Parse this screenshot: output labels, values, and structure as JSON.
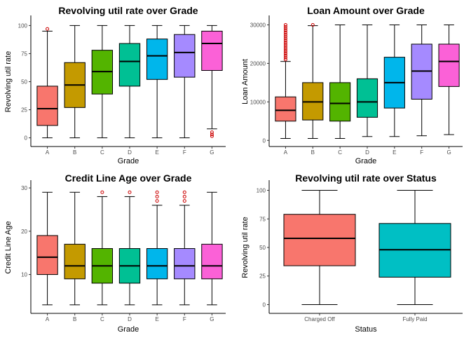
{
  "chart_data": [
    {
      "type": "boxplot",
      "title": "Revolving util rate over Grade",
      "xlabel": "Grade",
      "ylabel": "Revolving util rate",
      "ylim": [
        -4,
        104
      ],
      "yticks": [
        0,
        25,
        50,
        75,
        100
      ],
      "categories": [
        "A",
        "B",
        "C",
        "D",
        "E",
        "F",
        "G"
      ],
      "boxes": [
        {
          "min": 0,
          "q1": 11,
          "median": 26,
          "q3": 46,
          "max": 95,
          "outliers": [
            97
          ]
        },
        {
          "min": 0,
          "q1": 27,
          "median": 47,
          "q3": 67,
          "max": 100,
          "outliers": []
        },
        {
          "min": 0,
          "q1": 39,
          "median": 59,
          "q3": 78,
          "max": 100,
          "outliers": []
        },
        {
          "min": 0,
          "q1": 46,
          "median": 68,
          "q3": 84,
          "max": 100,
          "outliers": []
        },
        {
          "min": 0,
          "q1": 52,
          "median": 73,
          "q3": 88,
          "max": 100,
          "outliers": []
        },
        {
          "min": 0,
          "q1": 54,
          "median": 76,
          "q3": 92,
          "max": 100,
          "outliers": []
        },
        {
          "min": 8,
          "q1": 60,
          "median": 84,
          "q3": 95,
          "max": 100,
          "outliers": [
            5,
            3,
            1.5
          ]
        }
      ]
    },
    {
      "type": "boxplot",
      "title": "Loan Amount over Grade",
      "xlabel": "Grade",
      "ylabel": "Loan Amount",
      "ylim": [
        -500,
        31000
      ],
      "yticks": [
        0,
        10000,
        20000,
        30000
      ],
      "categories": [
        "A",
        "B",
        "C",
        "D",
        "E",
        "F",
        "G"
      ],
      "boxes": [
        {
          "min": 500,
          "q1": 5000,
          "median": 7800,
          "q3": 11300,
          "max": 20500,
          "outliers": [
            21000,
            21500,
            22000,
            22500,
            23000,
            23500,
            24000,
            24500,
            25000,
            25500,
            26000,
            26500,
            27000,
            27500,
            28000,
            28500,
            29000,
            29500,
            30000
          ]
        },
        {
          "min": 500,
          "q1": 5300,
          "median": 10000,
          "q3": 15000,
          "max": 29800,
          "outliers": [
            30000
          ]
        },
        {
          "min": 500,
          "q1": 5000,
          "median": 9600,
          "q3": 15000,
          "max": 30000,
          "outliers": []
        },
        {
          "min": 1000,
          "q1": 6000,
          "median": 10000,
          "q3": 16000,
          "max": 30000,
          "outliers": []
        },
        {
          "min": 1000,
          "q1": 8400,
          "median": 15000,
          "q3": 21600,
          "max": 30000,
          "outliers": []
        },
        {
          "min": 1200,
          "q1": 10700,
          "median": 18000,
          "q3": 25000,
          "max": 30000,
          "outliers": []
        },
        {
          "min": 1500,
          "q1": 14000,
          "median": 20500,
          "q3": 25000,
          "max": 30000,
          "outliers": []
        }
      ]
    },
    {
      "type": "boxplot",
      "title": "Credit Line Age over Grade",
      "xlabel": "Grade",
      "ylabel": "Credit Line Age",
      "ylim": [
        2,
        30.5
      ],
      "yticks": [
        10,
        20,
        30
      ],
      "categories": [
        "A",
        "B",
        "C",
        "D",
        "E",
        "F",
        "G"
      ],
      "boxes": [
        {
          "min": 3,
          "q1": 10,
          "median": 14,
          "q3": 19,
          "max": 29,
          "outliers": []
        },
        {
          "min": 3,
          "q1": 9,
          "median": 12,
          "q3": 17,
          "max": 29,
          "outliers": []
        },
        {
          "min": 3,
          "q1": 8,
          "median": 12,
          "q3": 16,
          "max": 28,
          "outliers": [
            29
          ]
        },
        {
          "min": 3,
          "q1": 8,
          "median": 12,
          "q3": 16,
          "max": 28,
          "outliers": [
            29
          ]
        },
        {
          "min": 3,
          "q1": 9,
          "median": 12,
          "q3": 16,
          "max": 26,
          "outliers": [
            27,
            28,
            29
          ]
        },
        {
          "min": 3,
          "q1": 9,
          "median": 12,
          "q3": 16,
          "max": 26,
          "outliers": [
            27,
            28,
            29
          ]
        },
        {
          "min": 3,
          "q1": 9,
          "median": 12,
          "q3": 17,
          "max": 29,
          "outliers": []
        }
      ]
    },
    {
      "type": "boxplot",
      "title": "Revolving util rate over Status",
      "xlabel": "Status",
      "ylabel": "Revolving util rate",
      "ylim": [
        -4,
        104
      ],
      "yticks": [
        0,
        25,
        50,
        75,
        100
      ],
      "categories": [
        "Charged Off",
        "Fully Paid"
      ],
      "boxes": [
        {
          "min": 0,
          "q1": 34,
          "median": 58,
          "q3": 79,
          "max": 100,
          "outliers": []
        },
        {
          "min": 0,
          "q1": 24,
          "median": 48,
          "q3": 71,
          "max": 100,
          "outliers": []
        }
      ]
    }
  ],
  "colors": {
    "grade": [
      "#F8766D",
      "#C49A00",
      "#53B400",
      "#00C094",
      "#00B6EB",
      "#A58AFF",
      "#FB61D7"
    ],
    "status": [
      "#F8766D",
      "#00BFC4"
    ],
    "outlier": "#cc0000",
    "axis": "#000000",
    "tick_label": "#4d4d4d"
  }
}
